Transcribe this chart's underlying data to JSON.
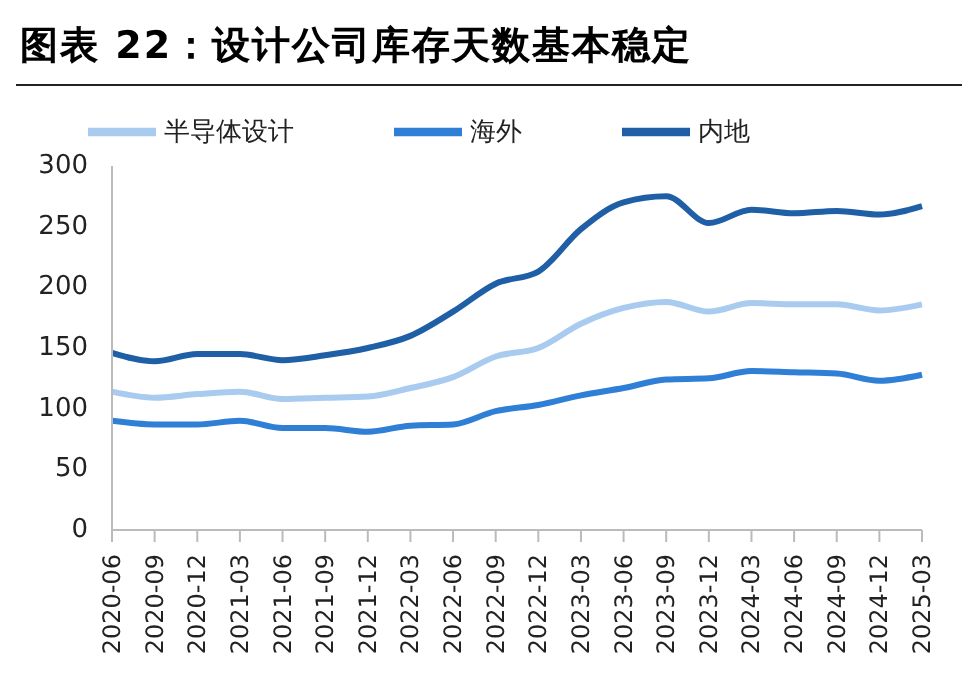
{
  "chart_data": {
    "type": "line",
    "title": "图表 22：设计公司库存天数基本稳定",
    "categories": [
      "2020-06",
      "2020-09",
      "2020-12",
      "2021-03",
      "2021-06",
      "2021-09",
      "2021-12",
      "2022-03",
      "2022-06",
      "2022-09",
      "2022-12",
      "2023-03",
      "2023-06",
      "2023-09",
      "2023-12",
      "2024-03",
      "2024-06",
      "2024-09",
      "2024-12",
      "2025-03"
    ],
    "series": [
      {
        "name": "半导体设计",
        "color": "#a9cbef",
        "values": [
          114,
          109,
          112,
          114,
          108,
          109,
          110,
          117,
          126,
          143,
          150,
          170,
          183,
          188,
          180,
          187,
          186,
          186,
          181,
          186
        ]
      },
      {
        "name": "海外",
        "color": "#2f7fd6",
        "values": [
          90,
          87,
          87,
          90,
          84,
          84,
          81,
          86,
          87,
          98,
          103,
          111,
          117,
          124,
          125,
          131,
          130,
          129,
          123,
          128
        ]
      },
      {
        "name": "内地",
        "color": "#1f5fa5",
        "values": [
          146,
          139,
          145,
          145,
          140,
          144,
          150,
          160,
          180,
          203,
          213,
          248,
          270,
          275,
          253,
          264,
          261,
          263,
          260,
          267
        ]
      }
    ],
    "ylim": [
      0,
      300
    ],
    "yticks": [
      0,
      50,
      100,
      150,
      200,
      250,
      300
    ],
    "grid": false,
    "legend": "top",
    "marker": "none",
    "line_style": "solid"
  }
}
